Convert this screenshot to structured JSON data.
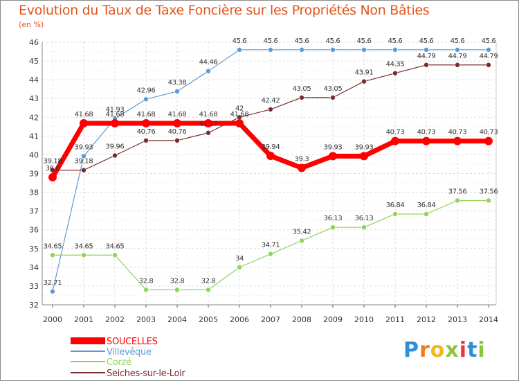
{
  "chart_data": {
    "type": "line",
    "title": "Evolution du Taux de Taxe Foncière sur les Propriétés Non Bâties",
    "ylabel": "(en %)",
    "xlabel": "",
    "ylim": [
      32,
      46
    ],
    "yticks": [
      "32",
      "33",
      "34",
      "35",
      "36",
      "37",
      "38",
      "39",
      "40",
      "41",
      "42",
      "43",
      "44",
      "45",
      "46"
    ],
    "categories": [
      "2000",
      "2001",
      "2002",
      "2003",
      "2004",
      "2005",
      "2006",
      "2007",
      "2008",
      "2009",
      "2010",
      "2011",
      "2012",
      "2013",
      "2014"
    ],
    "grid": true,
    "legend_position": "bottom-left",
    "series": [
      {
        "name": "SOUCELLES",
        "color": "#ff0000",
        "labels": [
          "38.8",
          "41.68",
          "41.68",
          "41.68",
          "41.68",
          "41.68",
          "41.68",
          "39.94",
          "39.3",
          "39.93",
          "39.93",
          "40.73",
          "40.73",
          "40.73",
          "40.73"
        ],
        "values": [
          38.8,
          41.68,
          41.68,
          41.68,
          41.68,
          41.68,
          41.68,
          39.94,
          39.3,
          39.93,
          39.93,
          40.73,
          40.73,
          40.73,
          40.73
        ]
      },
      {
        "name": "Villevêque",
        "color": "#5b9bd5",
        "labels": [
          "32.71",
          "39.93",
          "41.93",
          "42.96",
          "43.38",
          "44.46",
          "45.6",
          "45.6",
          "45.6",
          "45.6",
          "45.6",
          "45.6",
          "45.6",
          "45.6",
          "45.6"
        ],
        "values": [
          32.71,
          39.93,
          41.93,
          42.96,
          43.38,
          44.46,
          45.6,
          45.6,
          45.6,
          45.6,
          45.6,
          45.6,
          45.6,
          45.6,
          45.6
        ]
      },
      {
        "name": "Corzé",
        "color": "#8fd45a",
        "labels": [
          "34.65",
          "34.65",
          "34.65",
          "32.8",
          "32.8",
          "32.8",
          "34",
          "34.71",
          "35.42",
          "36.13",
          "36.13",
          "36.84",
          "36.84",
          "37.56",
          "37.56"
        ],
        "values": [
          34.65,
          34.65,
          34.65,
          32.8,
          32.8,
          32.8,
          34,
          34.71,
          35.42,
          36.13,
          36.13,
          36.84,
          36.84,
          37.56,
          37.56
        ]
      },
      {
        "name": "Seiches-sur-le-Loir",
        "color": "#7b2a2e",
        "labels": [
          "39.18",
          "39.18",
          "39.96",
          "40.76",
          "40.76",
          "41.17",
          "42",
          "42.42",
          "43.05",
          "43.05",
          "43.91",
          "44.35",
          "44.79",
          "44.79",
          "44.79"
        ],
        "values": [
          39.18,
          39.18,
          39.96,
          40.76,
          40.76,
          41.17,
          42,
          42.42,
          43.05,
          43.05,
          43.91,
          44.35,
          44.79,
          44.79,
          44.79
        ]
      }
    ]
  },
  "logo": {
    "letters": [
      "P",
      "r",
      "o",
      "x",
      "i",
      "t",
      "i"
    ],
    "colors": [
      "#2e8fd6",
      "#ef7d1a",
      "#f0b81c",
      "#8cc63f",
      "#e53935",
      "#2e8fd6",
      "#8cc63f"
    ]
  }
}
